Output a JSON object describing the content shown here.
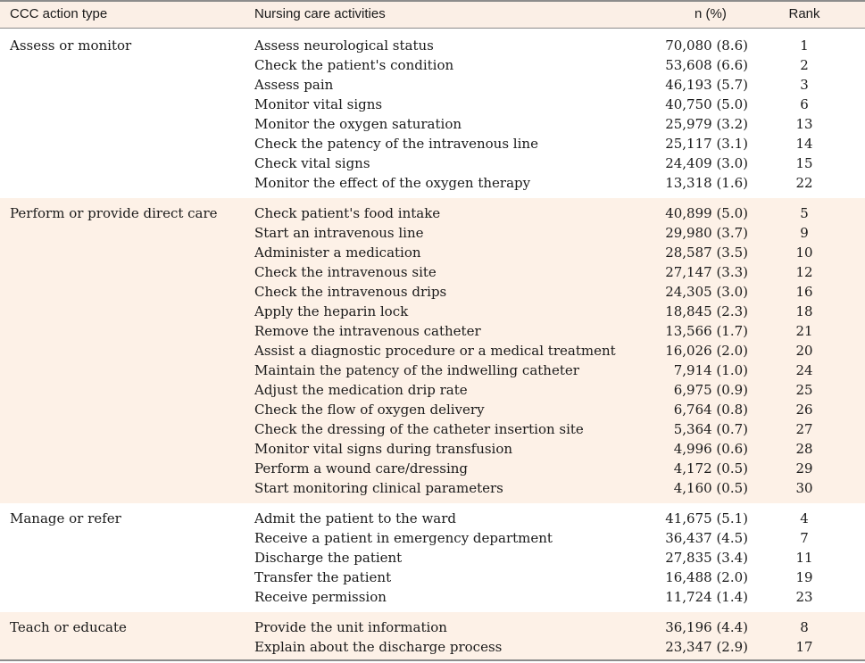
{
  "table": {
    "headers": {
      "type": "CCC action type",
      "activities": "Nursing care activities",
      "n": "n (%)",
      "rank": "Rank"
    },
    "groups": [
      {
        "type": "Assess or monitor",
        "rows": [
          {
            "activity": "Assess neurological status",
            "n": "70,080 (8.6)",
            "rank": "1"
          },
          {
            "activity": "Check the patient's condition",
            "n": "53,608 (6.6)",
            "rank": "2"
          },
          {
            "activity": "Assess pain",
            "n": "46,193 (5.7)",
            "rank": "3"
          },
          {
            "activity": "Monitor vital signs",
            "n": "40,750 (5.0)",
            "rank": "6"
          },
          {
            "activity": "Monitor the oxygen saturation",
            "n": "25,979 (3.2)",
            "rank": "13"
          },
          {
            "activity": "Check the patency of the intravenous line",
            "n": "25,117 (3.1)",
            "rank": "14"
          },
          {
            "activity": "Check vital signs",
            "n": "24,409 (3.0)",
            "rank": "15"
          },
          {
            "activity": "Monitor the effect of the oxygen therapy",
            "n": "13,318 (1.6)",
            "rank": "22"
          }
        ]
      },
      {
        "type": "Perform or provide direct care",
        "rows": [
          {
            "activity": "Check patient's food intake",
            "n": "40,899 (5.0)",
            "rank": "5"
          },
          {
            "activity": "Start an intravenous line",
            "n": "29,980 (3.7)",
            "rank": "9"
          },
          {
            "activity": "Administer a medication",
            "n": "28,587 (3.5)",
            "rank": "10"
          },
          {
            "activity": "Check the intravenous site",
            "n": "27,147 (3.3)",
            "rank": "12"
          },
          {
            "activity": "Check the intravenous drips",
            "n": "24,305 (3.0)",
            "rank": "16"
          },
          {
            "activity": "Apply the heparin lock",
            "n": "18,845 (2.3)",
            "rank": "18"
          },
          {
            "activity": "Remove the intravenous catheter",
            "n": "13,566 (1.7)",
            "rank": "21"
          },
          {
            "activity": "Assist a diagnostic procedure or a medical treatment",
            "n": "16,026 (2.0)",
            "rank": "20"
          },
          {
            "activity": "Maintain the patency of the indwelling catheter",
            "n": "7,914 (1.0)",
            "rank": "24"
          },
          {
            "activity": "Adjust the medication drip rate",
            "n": "6,975 (0.9)",
            "rank": "25"
          },
          {
            "activity": "Check the flow of oxygen delivery",
            "n": "6,764 (0.8)",
            "rank": "26"
          },
          {
            "activity": "Check the dressing of the catheter insertion site",
            "n": "5,364 (0.7)",
            "rank": "27"
          },
          {
            "activity": "Monitor vital signs during transfusion",
            "n": "4,996 (0.6)",
            "rank": "28"
          },
          {
            "activity": "Perform a wound care/dressing",
            "n": "4,172 (0.5)",
            "rank": "29"
          },
          {
            "activity": "Start monitoring clinical parameters",
            "n": "4,160 (0.5)",
            "rank": "30"
          }
        ]
      },
      {
        "type": "Manage or refer",
        "rows": [
          {
            "activity": "Admit the patient to the ward",
            "n": "41,675 (5.1)",
            "rank": "4"
          },
          {
            "activity": "Receive a patient in emergency department",
            "n": "36,437 (4.5)",
            "rank": "7"
          },
          {
            "activity": "Discharge the patient",
            "n": "27,835 (3.4)",
            "rank": "11"
          },
          {
            "activity": "Transfer the patient",
            "n": "16,488 (2.0)",
            "rank": "19"
          },
          {
            "activity": "Receive permission",
            "n": "11,724 (1.4)",
            "rank": "23"
          }
        ]
      },
      {
        "type": "Teach or educate",
        "rows": [
          {
            "activity": "Provide the unit information",
            "n": "36,196 (4.4)",
            "rank": "8"
          },
          {
            "activity": "Explain about the discharge process",
            "n": "23,347 (2.9)",
            "rank": "17"
          }
        ]
      }
    ]
  }
}
